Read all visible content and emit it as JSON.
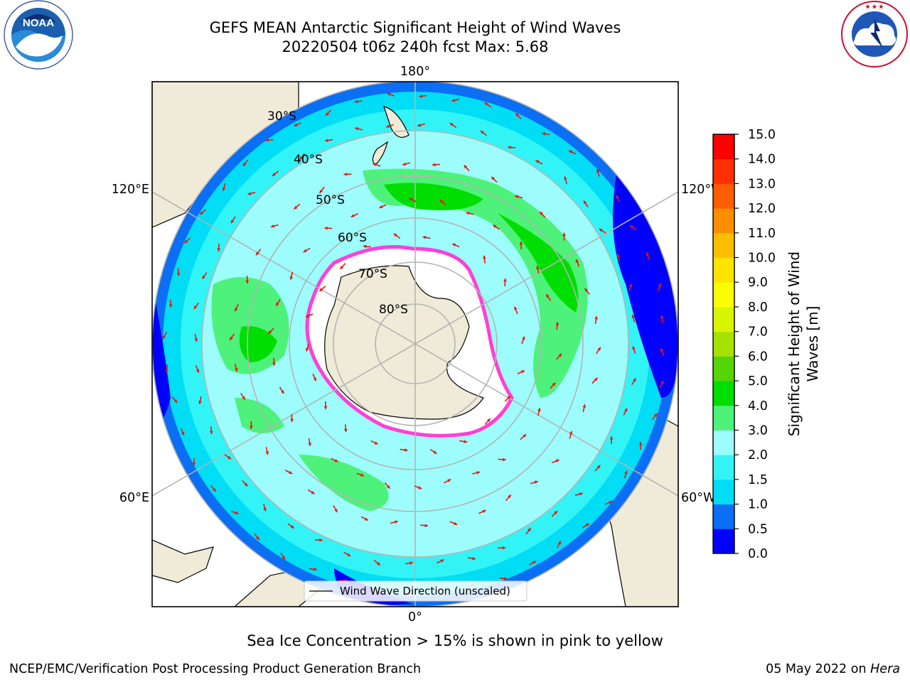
{
  "header": {
    "title_line1": "GEFS MEAN Antarctic Significant Height of Wind Waves",
    "title_line2": "20220504 t06z 240h fcst   Max: 5.68"
  },
  "logos": {
    "left": {
      "name": "noaa-logo",
      "text": "NOAA",
      "ring_text": "NATIONAL OCEANIC AND ATMOSPHERIC ADMINISTRATION · U.S. DEPARTMENT OF COMMERCE"
    },
    "right": {
      "name": "nws-logo",
      "ring_text": "NATIONAL WEATHER SERVICE"
    }
  },
  "map": {
    "projection": "south-polar-stereographic",
    "longitude_labels": [
      "180°",
      "120°E",
      "120°W",
      "60°E",
      "60°W",
      "0°"
    ],
    "latitude_labels": [
      "30°S",
      "40°S",
      "50°S",
      "60°S",
      "70°S",
      "80°S"
    ],
    "legend": "Wind Wave Direction (unscaled)",
    "colors": {
      "land": "#efebd8",
      "ice": "#ffffff",
      "arrow": "#e8160c",
      "grid": "#b4b4b4",
      "ice_edge": "#ff3fd8"
    }
  },
  "colorbar": {
    "label": "Significant Height of Wind Waves [m]",
    "label_line1": "Significant Height of Wind",
    "label_line2": "Waves [m]",
    "ticks": [
      "0.0",
      "0.5",
      "1.0",
      "1.5",
      "2.0",
      "3.0",
      "4.0",
      "5.0",
      "6.0",
      "7.0",
      "8.0",
      "9.0",
      "10.0",
      "11.0",
      "12.0",
      "13.0",
      "14.0",
      "15.0"
    ],
    "colors": [
      "#0000ff",
      "#0a6ff4",
      "#00ddf5",
      "#32f4f7",
      "#9dfdfd",
      "#4ef27a",
      "#00dd00",
      "#55d407",
      "#a6e200",
      "#d8f400",
      "#fdff00",
      "#ffe400",
      "#ffbd00",
      "#ff8d00",
      "#ff5d00",
      "#ff3000",
      "#ff0000"
    ]
  },
  "footer": {
    "note": "Sea Ice Concentration > 15% is shown in pink to yellow",
    "credit": "NCEP/EMC/Verification Post Processing Product Generation Branch",
    "date": "05 May 2022 on",
    "machine": "Hera"
  }
}
